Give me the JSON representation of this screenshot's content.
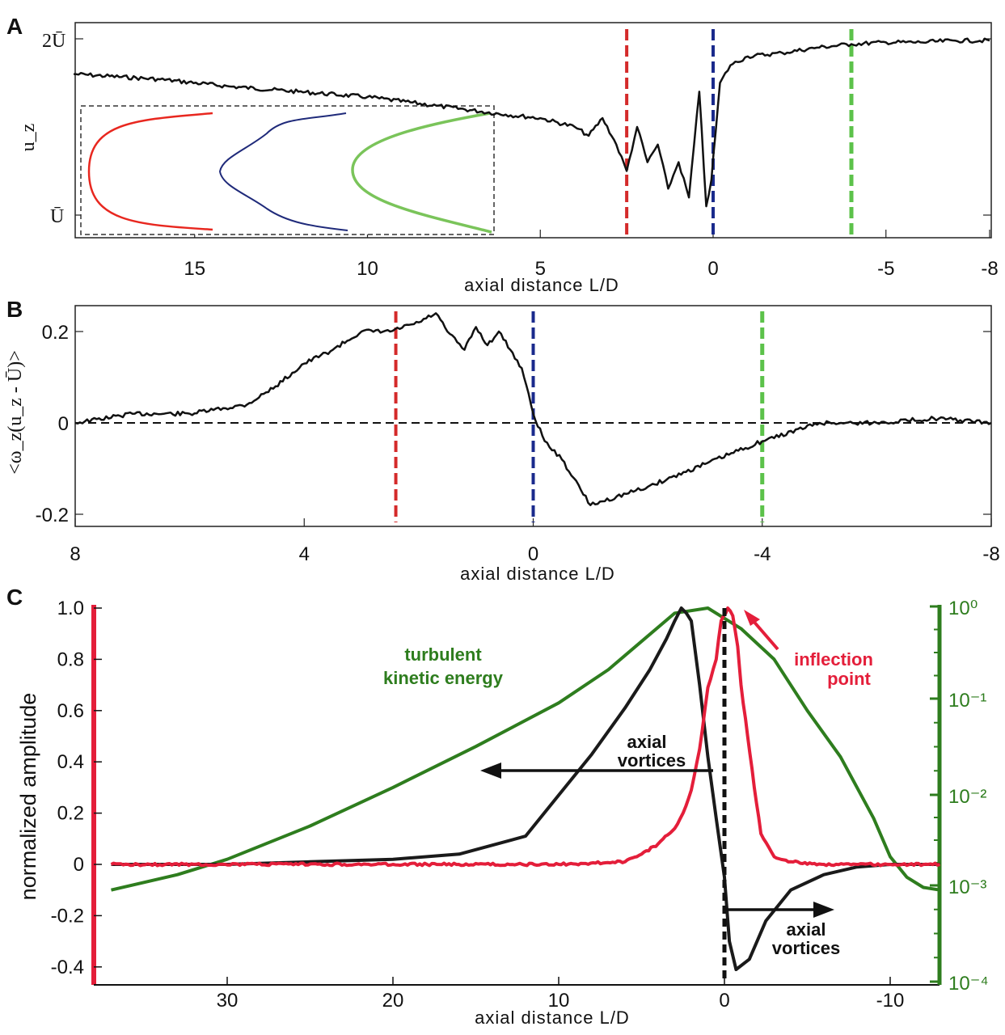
{
  "chart_data": [
    {
      "panel": "A",
      "type": "line",
      "xlabel": "axial distance L/D",
      "ylabel": "u_z",
      "xlim": [
        18.5,
        -8
      ],
      "x_ticks": [
        "15",
        "10",
        "5",
        "0",
        "-5",
        "-8"
      ],
      "y_ticks": [
        "Ū",
        "2Ū"
      ],
      "series": [
        {
          "x": [
            18.5,
            16,
            14,
            12,
            10,
            8,
            6,
            5,
            4,
            3.6,
            3.2,
            2.8,
            2.5,
            2.2,
            1.9,
            1.6,
            1.3,
            1.0,
            0.7,
            0.4,
            0.2,
            0.05,
            -0.2,
            -0.5,
            -1,
            -2,
            -3,
            -4,
            -5,
            -6,
            -7,
            -8
          ],
          "y": [
            1.8,
            1.77,
            1.73,
            1.7,
            1.67,
            1.62,
            1.57,
            1.55,
            1.5,
            1.45,
            1.55,
            1.4,
            1.25,
            1.5,
            1.3,
            1.4,
            1.15,
            1.3,
            1.1,
            1.7,
            1.05,
            1.2,
            1.75,
            1.85,
            1.9,
            1.92,
            1.95,
            1.97,
            1.98,
            1.98,
            1.99,
            1.99
          ]
        }
      ],
      "markers": [
        {
          "x": 2.5,
          "color": "#d42a2a"
        },
        {
          "x": 0,
          "color": "#1a2a8c"
        },
        {
          "x": -4,
          "color": "#5cc24a"
        }
      ],
      "inset_colors": [
        "#e8271f",
        "#1f2a7a",
        "#7ac45a"
      ]
    },
    {
      "panel": "B",
      "type": "line",
      "xlabel": "axial distance L/D",
      "ylabel": "<ω_z(u_z - Ū)>",
      "xlim": [
        8,
        -8
      ],
      "ylim": [
        -0.2,
        0.25
      ],
      "x_ticks": [
        8,
        4,
        0,
        -4,
        -8
      ],
      "y_ticks": [
        "-0.2",
        "0",
        "0.2"
      ],
      "series": [
        {
          "x": [
            8,
            7,
            6,
            5,
            4.5,
            4,
            3.5,
            3,
            2.5,
            2,
            1.7,
            1.5,
            1.2,
            1.0,
            0.8,
            0.6,
            0.4,
            0.2,
            0,
            -0.2,
            -0.5,
            -1,
            -2,
            -3,
            -4,
            -5,
            -6,
            -7,
            -8
          ],
          "y": [
            0.0,
            0.02,
            0.02,
            0.04,
            0.08,
            0.13,
            0.16,
            0.2,
            0.2,
            0.22,
            0.24,
            0.2,
            0.16,
            0.21,
            0.17,
            0.2,
            0.16,
            0.12,
            0.02,
            -0.04,
            -0.08,
            -0.18,
            -0.14,
            -0.09,
            -0.04,
            0.0,
            0.0,
            0.01,
            0.0
          ]
        }
      ],
      "zero_line": "dashed",
      "markers": [
        {
          "x": 2.4,
          "color": "#d42a2a"
        },
        {
          "x": 0,
          "color": "#1a2a8c"
        },
        {
          "x": -4,
          "color": "#5cc24a"
        }
      ]
    },
    {
      "panel": "C",
      "type": "line",
      "xlabel": "axial distance L/D",
      "ylabel": "normalized amplitude",
      "xlim": [
        37,
        -13
      ],
      "ylim": [
        -0.42,
        1.0
      ],
      "x_ticks": [
        30,
        20,
        10,
        0,
        -10
      ],
      "y_ticks": [
        "-0.4",
        "-0.2",
        "0",
        "0.2",
        "0.4",
        "0.6",
        "0.8",
        "1.0"
      ],
      "y2_scale": "log",
      "y2_ticks": [
        "10⁻⁴",
        "10⁻³",
        "10⁻²",
        "10⁻¹",
        "10⁰"
      ],
      "series": [
        {
          "color": "#1a1a1a",
          "x": [
            37,
            30,
            25,
            20,
            16,
            12,
            10,
            8,
            6,
            4.5,
            3.5,
            3,
            2.6,
            2.3,
            2,
            1.5,
            1,
            0.5,
            0,
            -0.3,
            -0.7,
            -1.5,
            -2.5,
            -4,
            -6,
            -8,
            -10,
            -13
          ],
          "y": [
            0.0,
            0.0,
            0.01,
            0.02,
            0.04,
            0.11,
            0.27,
            0.43,
            0.61,
            0.76,
            0.88,
            0.95,
            1.0,
            0.98,
            0.95,
            0.7,
            0.42,
            0.18,
            -0.05,
            -0.3,
            -0.41,
            -0.37,
            -0.22,
            -0.1,
            -0.04,
            -0.01,
            0.0,
            0.0
          ]
        },
        {
          "color": "#e41e3a",
          "x": [
            37,
            20,
            10,
            6,
            5,
            4,
            3,
            2.5,
            2,
            1.5,
            1,
            0.5,
            0.2,
            -0.2,
            -0.5,
            -0.8,
            -1,
            -1.4,
            -1.8,
            -2.2,
            -3,
            -4,
            -6,
            -10,
            -13
          ],
          "y": [
            0.0,
            0.0,
            0.0,
            0.01,
            0.04,
            0.08,
            0.14,
            0.2,
            0.29,
            0.45,
            0.69,
            0.8,
            0.95,
            1.0,
            0.97,
            0.85,
            0.7,
            0.5,
            0.3,
            0.12,
            0.03,
            0.01,
            0.0,
            0.0,
            0.0
          ]
        },
        {
          "color": "#2e7d1e",
          "x": [
            37,
            33,
            30,
            25,
            20,
            15,
            10,
            7,
            5,
            3,
            1,
            -1,
            -2,
            -3,
            -5,
            -7,
            -9,
            -10,
            -11,
            -12,
            -13
          ],
          "y": [
            -0.1,
            -0.04,
            0.02,
            0.15,
            0.3,
            0.46,
            0.63,
            0.76,
            0.87,
            0.98,
            1.0,
            0.92,
            0.86,
            0.8,
            0.6,
            0.42,
            0.18,
            0.03,
            -0.05,
            -0.09,
            -0.1
          ]
        }
      ],
      "annotations": [
        {
          "text_lines": [
            "turbulent",
            "kinetic energy"
          ],
          "color": "#2e7d1e"
        },
        {
          "text_lines": [
            "inflection",
            "point"
          ],
          "color": "#e41e3a"
        },
        {
          "text_lines": [
            "axial",
            "vortices"
          ],
          "color": "#111111"
        },
        {
          "text_lines": [
            "axial",
            "vortices"
          ],
          "color": "#111111"
        }
      ],
      "left_edge_color": "#e41e3a",
      "right_axis_color": "#2e7d1e"
    }
  ]
}
